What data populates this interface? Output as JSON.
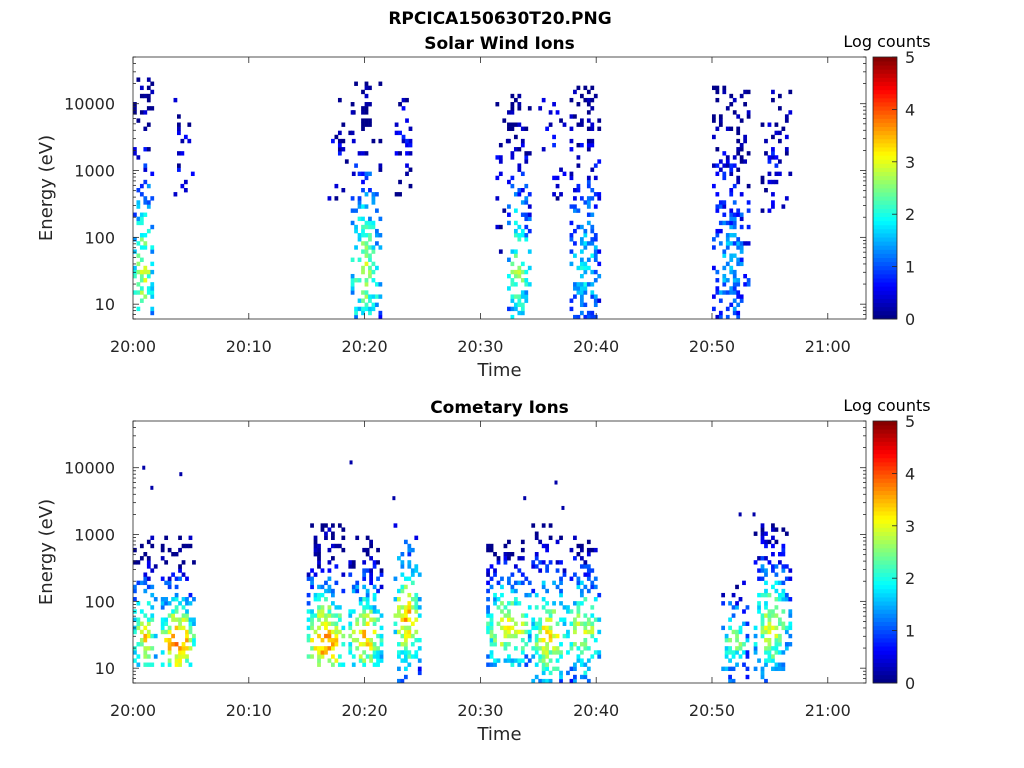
{
  "figure": {
    "title": "RPCICA150630T20.PNG"
  },
  "colormap": {
    "name": "jet",
    "stops": [
      "#00008f",
      "#0000ff",
      "#0080ff",
      "#00ffff",
      "#80ff80",
      "#ffff00",
      "#ff8000",
      "#ff0000",
      "#800000"
    ]
  },
  "chart_data": [
    {
      "type": "heatmap",
      "title": "Solar Wind Ions",
      "xlabel": "Time",
      "ylabel": "Energy (eV)",
      "x_ticks": [
        "20:00",
        "20:10",
        "20:20",
        "20:30",
        "20:40",
        "20:50",
        "21:00"
      ],
      "x_tick_minutes": [
        0,
        10,
        20,
        30,
        40,
        50,
        60
      ],
      "xlim_minutes": [
        0,
        63.3
      ],
      "y_scale": "log",
      "y_ticks": [
        "10",
        "100",
        "1000",
        "10000"
      ],
      "y_tick_values": [
        10,
        100,
        1000,
        10000
      ],
      "ylim": [
        6,
        50000
      ],
      "colorbar": {
        "label": "Log counts",
        "ticks": [
          "0",
          "1",
          "2",
          "3",
          "4",
          "5"
        ],
        "range": [
          0,
          5
        ]
      },
      "bursts": [
        {
          "t": [
            0.0,
            1.8
          ],
          "e": [
            6,
            30000
          ],
          "density": 0.5,
          "peak_level": 2.8,
          "peak_e": 28
        },
        {
          "t": [
            3.5,
            5.2
          ],
          "e": [
            400,
            12000
          ],
          "density": 0.22,
          "peak_level": 0.5,
          "peak_e": 1500
        },
        {
          "t": [
            16.5,
            19.0
          ],
          "e": [
            300,
            15000
          ],
          "density": 0.1,
          "peak_level": 0.5,
          "peak_e": 1000
        },
        {
          "t": [
            18.8,
            21.3
          ],
          "e": [
            6,
            20000
          ],
          "density": 0.5,
          "peak_level": 2.8,
          "peak_e": 30
        },
        {
          "t": [
            22.6,
            24.3
          ],
          "e": [
            400,
            12000
          ],
          "density": 0.22,
          "peak_level": 0.5,
          "peak_e": 3000
        },
        {
          "t": [
            31.3,
            32.5
          ],
          "e": [
            60,
            10000
          ],
          "density": 0.12,
          "peak_level": 0.6,
          "peak_e": 500
        },
        {
          "t": [
            32.3,
            34.2
          ],
          "e": [
            6,
            15000
          ],
          "density": 0.5,
          "peak_level": 2.6,
          "peak_e": 30
        },
        {
          "t": [
            35.0,
            37.2
          ],
          "e": [
            150,
            12000
          ],
          "density": 0.18,
          "peak_level": 0.5,
          "peak_e": 2000
        },
        {
          "t": [
            37.7,
            40.3
          ],
          "e": [
            6,
            18000
          ],
          "density": 0.5,
          "peak_level": 1.8,
          "peak_e": 40
        },
        {
          "t": [
            50.0,
            53.0
          ],
          "e": [
            6,
            18000
          ],
          "density": 0.45,
          "peak_level": 1.5,
          "peak_e": 40
        },
        {
          "t": [
            54.2,
            56.6
          ],
          "e": [
            250,
            18000
          ],
          "density": 0.25,
          "peak_level": 0.5,
          "peak_e": 1200
        }
      ]
    },
    {
      "type": "heatmap",
      "title": "Cometary Ions",
      "xlabel": "Time",
      "ylabel": "Energy (eV)",
      "x_ticks": [
        "20:00",
        "20:10",
        "20:20",
        "20:30",
        "20:40",
        "20:50",
        "21:00"
      ],
      "x_tick_minutes": [
        0,
        10,
        20,
        30,
        40,
        50,
        60
      ],
      "xlim_minutes": [
        0,
        63.3
      ],
      "y_scale": "log",
      "y_ticks": [
        "10",
        "100",
        "1000",
        "10000"
      ],
      "y_tick_values": [
        10,
        100,
        1000,
        10000
      ],
      "ylim": [
        6,
        50000
      ],
      "colorbar": {
        "label": "Log counts",
        "ticks": [
          "0",
          "1",
          "2",
          "3",
          "4",
          "5"
        ],
        "range": [
          0,
          5
        ]
      },
      "bursts": [
        {
          "t": [
            0.0,
            2.0
          ],
          "e": [
            10,
            900
          ],
          "density": 0.55,
          "peak_level": 3.2,
          "peak_e": 30
        },
        {
          "t": [
            2.4,
            5.3
          ],
          "e": [
            10,
            900
          ],
          "density": 0.6,
          "peak_level": 3.8,
          "peak_e": 25
        },
        {
          "t": [
            15.0,
            18.3
          ],
          "e": [
            10,
            1500
          ],
          "density": 0.6,
          "peak_level": 3.8,
          "peak_e": 25
        },
        {
          "t": [
            18.6,
            21.5
          ],
          "e": [
            10,
            1000
          ],
          "density": 0.55,
          "peak_level": 3.4,
          "peak_e": 30
        },
        {
          "t": [
            22.5,
            24.8
          ],
          "e": [
            6,
            1500
          ],
          "density": 0.55,
          "peak_level": 3.5,
          "peak_e": 60
        },
        {
          "t": [
            30.5,
            34.3
          ],
          "e": [
            10,
            800
          ],
          "density": 0.55,
          "peak_level": 3.3,
          "peak_e": 40
        },
        {
          "t": [
            34.4,
            37.3
          ],
          "e": [
            6,
            1500
          ],
          "density": 0.55,
          "peak_level": 3.2,
          "peak_e": 30
        },
        {
          "t": [
            37.4,
            40.3
          ],
          "e": [
            6,
            900
          ],
          "density": 0.55,
          "peak_level": 3.0,
          "peak_e": 35
        },
        {
          "t": [
            50.8,
            53.0
          ],
          "e": [
            6,
            200
          ],
          "density": 0.5,
          "peak_level": 2.6,
          "peak_e": 25
        },
        {
          "t": [
            53.6,
            56.6
          ],
          "e": [
            6,
            1500
          ],
          "density": 0.55,
          "peak_level": 3.0,
          "peak_e": 40
        }
      ],
      "outliers": [
        {
          "t": 0.8,
          "e": 10000
        },
        {
          "t": 1.5,
          "e": 5000
        },
        {
          "t": 4.0,
          "e": 8000
        },
        {
          "t": 18.7,
          "e": 12000
        },
        {
          "t": 22.4,
          "e": 3500
        },
        {
          "t": 33.7,
          "e": 3500
        },
        {
          "t": 36.4,
          "e": 6000
        },
        {
          "t": 37.0,
          "e": 2500
        },
        {
          "t": 52.3,
          "e": 2000
        },
        {
          "t": 53.5,
          "e": 2000
        }
      ]
    }
  ]
}
